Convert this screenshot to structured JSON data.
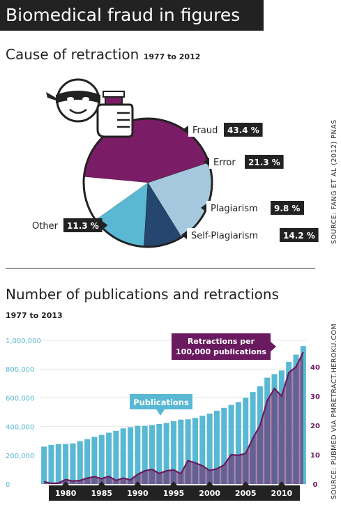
{
  "header": {
    "title": "Biomedical fraud in figures"
  },
  "colors": {
    "fraud": "#7b1d66",
    "error": "#a6c8df",
    "plagiarism": "#25476f",
    "self_plagiarism": "#5ab8d4",
    "other": "#ffffff",
    "bars": "#59b8d3",
    "retractions": "#6a1a5e",
    "dark": "#222222"
  },
  "icons": [
    "masked-face-icon",
    "flask-in-hand-icon"
  ],
  "section1": {
    "title": "Cause of retraction",
    "subtitle": "1977 to 2012",
    "source": "SOURCE: FANG ET AL (2012) PNAS"
  },
  "section2": {
    "title": "Number of publications and retractions",
    "subtitle": "1977 to 2013",
    "source": "SOURCE: PUBMED VIA PMRETRACT.HEROKU.COM",
    "publications_label": "Publications",
    "retractions_label_1": "Retractions per",
    "retractions_label_2": "100,000 publications"
  },
  "chart_data": [
    {
      "type": "pie",
      "title": "Cause of retraction",
      "subtitle": "1977 to 2012",
      "slices": [
        {
          "label": "Fraud",
          "value": 43.4,
          "display": "43.4 %"
        },
        {
          "label": "Error",
          "value": 21.3,
          "display": "21.3 %"
        },
        {
          "label": "Plagiarism",
          "value": 9.8,
          "display": "9.8 %"
        },
        {
          "label": "Self-Plagiarism",
          "value": 14.2,
          "display": "14.2 %"
        },
        {
          "label": "Other",
          "value": 11.3,
          "display": "11.3 %"
        }
      ]
    },
    {
      "type": "bar",
      "title": "Number of publications and retractions",
      "subtitle": "1977 to 2013",
      "x": [
        1977,
        1978,
        1979,
        1980,
        1981,
        1982,
        1983,
        1984,
        1985,
        1986,
        1987,
        1988,
        1989,
        1990,
        1991,
        1992,
        1993,
        1994,
        1995,
        1996,
        1997,
        1998,
        1999,
        2000,
        2001,
        2002,
        2003,
        2004,
        2005,
        2006,
        2007,
        2008,
        2009,
        2010,
        2011,
        2012,
        2013
      ],
      "x_ticks": [
        "1980",
        "1985",
        "1990",
        "1995",
        "2000",
        "2005",
        "2010"
      ],
      "y_left_ticks": [
        "0",
        "200,000",
        "400,000",
        "600,000",
        "800,000",
        "1,000,000"
      ],
      "y_left_lim": [
        0,
        1000000
      ],
      "y_right_ticks": [
        "0",
        "10",
        "20",
        "30",
        "40"
      ],
      "y_right_lim": [
        0,
        40
      ],
      "series": [
        {
          "name": "Publications",
          "type": "bar",
          "axis": "left",
          "values": [
            260000,
            272000,
            278000,
            278000,
            283000,
            298000,
            312000,
            328000,
            342000,
            357000,
            370000,
            387000,
            395000,
            405000,
            405000,
            410000,
            418000,
            425000,
            438000,
            448000,
            450000,
            460000,
            475000,
            490000,
            510000,
            530000,
            550000,
            570000,
            600000,
            640000,
            680000,
            740000,
            765000,
            790000,
            850000,
            900000,
            960000
          ]
        },
        {
          "name": "Retractions per 100,000 publications",
          "type": "line",
          "axis": "right",
          "values": [
            0.8,
            0.2,
            0.3,
            1.5,
            1.0,
            1.2,
            2.0,
            2.5,
            1.8,
            2.6,
            1.2,
            2.0,
            1.4,
            3.3,
            4.5,
            5.0,
            3.6,
            4.5,
            4.8,
            3.5,
            8.0,
            7.2,
            6.2,
            4.6,
            5.2,
            6.5,
            10.0,
            9.8,
            10.4,
            15.6,
            20.0,
            28.5,
            32.6,
            30.0,
            38.0,
            40.0,
            45.0
          ]
        }
      ]
    }
  ]
}
